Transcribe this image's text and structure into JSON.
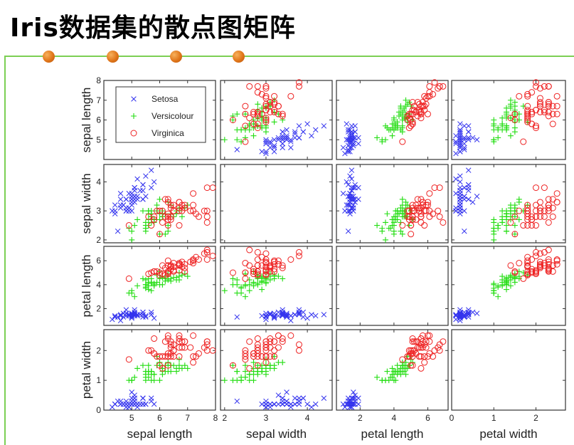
{
  "slide": {
    "title": "Iris数据集的散点图矩阵",
    "accent_line_color": "#7ccf54",
    "bullet_color": "#e0761a"
  },
  "chart_data": {
    "type": "scatter",
    "title": "Iris数据集的散点图矩阵",
    "variables": [
      "sepal length",
      "sepal width",
      "petal length",
      "petal width"
    ],
    "axis_ranges": [
      [
        4.0,
        8.0
      ],
      [
        1.9,
        4.6
      ],
      [
        0.6,
        7.2
      ],
      [
        0.0,
        2.7
      ]
    ],
    "ticks": [
      [
        5,
        6,
        7,
        8
      ],
      [
        2,
        3,
        4
      ],
      [
        2,
        4,
        6
      ],
      [
        0,
        1,
        2
      ]
    ],
    "row_tick_labels": [
      [
        "5",
        "6",
        "7",
        "8"
      ],
      [
        "2",
        "3",
        "4"
      ],
      [
        "2",
        "4",
        "6"
      ],
      [
        "0",
        "1",
        "2"
      ]
    ],
    "col_tick_labels": [
      [
        "5",
        "6",
        "7",
        "8"
      ],
      [
        "2",
        "3",
        "4"
      ],
      [
        "2",
        "4",
        "6"
      ],
      [
        "0",
        "1",
        "2"
      ]
    ],
    "legend": {
      "placement": "top-left",
      "entries": [
        "Setosa",
        "Versicolour",
        "Virginica"
      ]
    },
    "series": [
      {
        "name": "Setosa",
        "marker": "x",
        "color": "#3333ee",
        "points": [
          [
            5.1,
            3.5,
            1.4,
            0.2
          ],
          [
            4.9,
            3.0,
            1.4,
            0.2
          ],
          [
            4.7,
            3.2,
            1.3,
            0.2
          ],
          [
            4.6,
            3.1,
            1.5,
            0.2
          ],
          [
            5.0,
            3.6,
            1.4,
            0.2
          ],
          [
            5.4,
            3.9,
            1.7,
            0.4
          ],
          [
            4.6,
            3.4,
            1.4,
            0.3
          ],
          [
            5.0,
            3.4,
            1.5,
            0.2
          ],
          [
            4.4,
            2.9,
            1.4,
            0.2
          ],
          [
            4.9,
            3.1,
            1.5,
            0.1
          ],
          [
            5.4,
            3.7,
            1.5,
            0.2
          ],
          [
            4.8,
            3.4,
            1.6,
            0.2
          ],
          [
            4.8,
            3.0,
            1.4,
            0.1
          ],
          [
            4.3,
            3.0,
            1.1,
            0.1
          ],
          [
            5.8,
            4.0,
            1.2,
            0.2
          ],
          [
            5.7,
            4.4,
            1.5,
            0.4
          ],
          [
            5.4,
            3.9,
            1.3,
            0.4
          ],
          [
            5.1,
            3.5,
            1.4,
            0.3
          ],
          [
            5.7,
            3.8,
            1.7,
            0.3
          ],
          [
            5.1,
            3.8,
            1.5,
            0.3
          ],
          [
            5.4,
            3.4,
            1.7,
            0.2
          ],
          [
            5.1,
            3.7,
            1.5,
            0.4
          ],
          [
            4.6,
            3.6,
            1.0,
            0.2
          ],
          [
            5.1,
            3.3,
            1.7,
            0.5
          ],
          [
            4.8,
            3.4,
            1.9,
            0.2
          ],
          [
            5.0,
            3.0,
            1.6,
            0.2
          ],
          [
            5.0,
            3.4,
            1.6,
            0.4
          ],
          [
            5.2,
            3.5,
            1.5,
            0.2
          ],
          [
            5.2,
            3.4,
            1.4,
            0.2
          ],
          [
            4.7,
            3.2,
            1.6,
            0.2
          ],
          [
            4.8,
            3.1,
            1.6,
            0.2
          ],
          [
            5.4,
            3.4,
            1.5,
            0.4
          ],
          [
            5.2,
            4.1,
            1.5,
            0.1
          ],
          [
            5.5,
            4.2,
            1.4,
            0.2
          ],
          [
            4.9,
            3.1,
            1.5,
            0.2
          ],
          [
            5.0,
            3.2,
            1.2,
            0.2
          ],
          [
            5.5,
            3.5,
            1.3,
            0.2
          ],
          [
            4.9,
            3.6,
            1.4,
            0.1
          ],
          [
            4.4,
            3.0,
            1.3,
            0.2
          ],
          [
            5.1,
            3.4,
            1.5,
            0.2
          ],
          [
            5.0,
            3.5,
            1.3,
            0.3
          ],
          [
            4.5,
            2.3,
            1.3,
            0.3
          ],
          [
            4.4,
            3.2,
            1.3,
            0.2
          ],
          [
            5.0,
            3.5,
            1.6,
            0.6
          ],
          [
            5.1,
            3.8,
            1.9,
            0.4
          ],
          [
            4.8,
            3.0,
            1.4,
            0.3
          ],
          [
            5.1,
            3.8,
            1.6,
            0.2
          ],
          [
            4.6,
            3.2,
            1.4,
            0.2
          ],
          [
            5.3,
            3.7,
            1.5,
            0.2
          ],
          [
            5.0,
            3.3,
            1.4,
            0.2
          ]
        ]
      },
      {
        "name": "Versicolour",
        "marker": "+",
        "color": "#22dd11",
        "points": [
          [
            7.0,
            3.2,
            4.7,
            1.4
          ],
          [
            6.4,
            3.2,
            4.5,
            1.5
          ],
          [
            6.9,
            3.1,
            4.9,
            1.5
          ],
          [
            5.5,
            2.3,
            4.0,
            1.3
          ],
          [
            6.5,
            2.8,
            4.6,
            1.5
          ],
          [
            5.7,
            2.8,
            4.5,
            1.3
          ],
          [
            6.3,
            3.3,
            4.7,
            1.6
          ],
          [
            4.9,
            2.4,
            3.3,
            1.0
          ],
          [
            6.6,
            2.9,
            4.6,
            1.3
          ],
          [
            5.2,
            2.7,
            3.9,
            1.4
          ],
          [
            5.0,
            2.0,
            3.5,
            1.0
          ],
          [
            5.9,
            3.0,
            4.2,
            1.5
          ],
          [
            6.0,
            2.2,
            4.0,
            1.0
          ],
          [
            6.1,
            2.9,
            4.7,
            1.4
          ],
          [
            5.6,
            2.9,
            3.6,
            1.3
          ],
          [
            6.7,
            3.1,
            4.4,
            1.4
          ],
          [
            5.6,
            3.0,
            4.5,
            1.5
          ],
          [
            5.8,
            2.7,
            4.1,
            1.0
          ],
          [
            6.2,
            2.2,
            4.5,
            1.5
          ],
          [
            5.6,
            2.5,
            3.9,
            1.1
          ],
          [
            5.9,
            3.2,
            4.8,
            1.8
          ],
          [
            6.1,
            2.8,
            4.0,
            1.3
          ],
          [
            6.3,
            2.5,
            4.9,
            1.5
          ],
          [
            6.1,
            2.8,
            4.7,
            1.2
          ],
          [
            6.4,
            2.9,
            4.3,
            1.3
          ],
          [
            6.6,
            3.0,
            4.4,
            1.4
          ],
          [
            6.8,
            2.8,
            4.8,
            1.4
          ],
          [
            6.7,
            3.0,
            5.0,
            1.7
          ],
          [
            6.0,
            2.9,
            4.5,
            1.5
          ],
          [
            5.7,
            2.6,
            3.5,
            1.0
          ],
          [
            5.5,
            2.4,
            3.8,
            1.1
          ],
          [
            5.5,
            2.4,
            3.7,
            1.0
          ],
          [
            5.8,
            2.7,
            3.9,
            1.2
          ],
          [
            6.0,
            2.7,
            5.1,
            1.6
          ],
          [
            5.4,
            3.0,
            4.5,
            1.5
          ],
          [
            6.0,
            3.4,
            4.5,
            1.6
          ],
          [
            6.7,
            3.1,
            4.7,
            1.5
          ],
          [
            6.3,
            2.3,
            4.4,
            1.3
          ],
          [
            5.6,
            3.0,
            4.1,
            1.3
          ],
          [
            5.5,
            2.5,
            4.0,
            1.3
          ],
          [
            5.5,
            2.6,
            4.4,
            1.2
          ],
          [
            6.1,
            3.0,
            4.6,
            1.4
          ],
          [
            5.8,
            2.6,
            4.0,
            1.2
          ],
          [
            5.0,
            2.3,
            3.3,
            1.0
          ],
          [
            5.6,
            2.7,
            4.2,
            1.3
          ],
          [
            5.7,
            3.0,
            4.2,
            1.2
          ],
          [
            5.7,
            2.9,
            4.2,
            1.3
          ],
          [
            6.2,
            2.9,
            4.3,
            1.3
          ],
          [
            5.1,
            2.5,
            3.0,
            1.1
          ],
          [
            5.7,
            2.8,
            4.1,
            1.3
          ]
        ]
      },
      {
        "name": "Virginica",
        "marker": "o",
        "color": "#ee2222",
        "points": [
          [
            6.3,
            3.3,
            6.0,
            2.5
          ],
          [
            5.8,
            2.7,
            5.1,
            1.9
          ],
          [
            7.1,
            3.0,
            5.9,
            2.1
          ],
          [
            6.3,
            2.9,
            5.6,
            1.8
          ],
          [
            6.5,
            3.0,
            5.8,
            2.2
          ],
          [
            7.6,
            3.0,
            6.6,
            2.1
          ],
          [
            4.9,
            2.5,
            4.5,
            1.7
          ],
          [
            7.3,
            2.9,
            6.3,
            1.8
          ],
          [
            6.7,
            2.5,
            5.8,
            1.8
          ],
          [
            7.2,
            3.6,
            6.1,
            2.5
          ],
          [
            6.5,
            3.2,
            5.1,
            2.0
          ],
          [
            6.4,
            2.7,
            5.3,
            1.9
          ],
          [
            6.8,
            3.0,
            5.5,
            2.1
          ],
          [
            5.7,
            2.5,
            5.0,
            2.0
          ],
          [
            5.8,
            2.8,
            5.1,
            2.4
          ],
          [
            6.4,
            3.2,
            5.3,
            2.3
          ],
          [
            6.5,
            3.0,
            5.5,
            1.8
          ],
          [
            7.7,
            3.8,
            6.7,
            2.2
          ],
          [
            7.7,
            2.6,
            6.9,
            2.3
          ],
          [
            6.0,
            2.2,
            5.0,
            1.5
          ],
          [
            6.9,
            3.2,
            5.7,
            2.3
          ],
          [
            5.6,
            2.8,
            4.9,
            2.0
          ],
          [
            7.7,
            2.8,
            6.7,
            2.0
          ],
          [
            6.3,
            2.7,
            4.9,
            1.8
          ],
          [
            6.7,
            3.3,
            5.7,
            2.1
          ],
          [
            7.2,
            3.2,
            6.0,
            1.8
          ],
          [
            6.2,
            2.8,
            4.8,
            1.8
          ],
          [
            6.1,
            3.0,
            4.9,
            1.8
          ],
          [
            6.4,
            2.8,
            5.6,
            2.1
          ],
          [
            7.2,
            3.0,
            5.8,
            1.6
          ],
          [
            7.4,
            2.8,
            6.1,
            1.9
          ],
          [
            7.9,
            3.8,
            6.4,
            2.0
          ],
          [
            6.4,
            2.8,
            5.6,
            2.2
          ],
          [
            6.3,
            2.8,
            5.1,
            1.5
          ],
          [
            6.1,
            2.6,
            5.6,
            1.4
          ],
          [
            7.7,
            3.0,
            6.1,
            2.3
          ],
          [
            6.3,
            3.4,
            5.6,
            2.4
          ],
          [
            6.4,
            3.1,
            5.5,
            1.8
          ],
          [
            6.0,
            3.0,
            4.8,
            1.8
          ],
          [
            6.9,
            3.1,
            5.4,
            2.1
          ],
          [
            6.7,
            3.1,
            5.6,
            2.4
          ],
          [
            6.9,
            3.1,
            5.1,
            2.3
          ],
          [
            5.8,
            2.7,
            5.1,
            1.9
          ],
          [
            6.8,
            3.2,
            5.9,
            2.3
          ],
          [
            6.7,
            3.3,
            5.7,
            2.5
          ],
          [
            6.7,
            3.0,
            5.2,
            2.3
          ],
          [
            6.3,
            2.5,
            5.0,
            1.9
          ],
          [
            6.5,
            3.0,
            5.2,
            2.0
          ],
          [
            6.2,
            3.4,
            5.4,
            2.3
          ],
          [
            5.9,
            3.0,
            5.1,
            1.8
          ]
        ]
      }
    ]
  }
}
